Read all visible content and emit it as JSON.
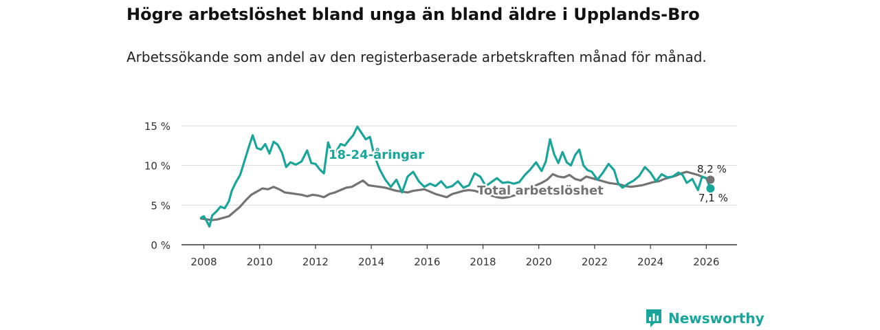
{
  "title": "Högre arbetslöshet bland unga än bland äldre i Upplands-Bro",
  "subtitle": "Arbetssökande som andel av den registerbaserade arbetskraften månad för månad.",
  "brand": {
    "name": "Newsworthy",
    "icon": "bar-chart-icon"
  },
  "colors": {
    "youth": "#1aa59a",
    "total": "#737373",
    "grid": "#d9d9d9",
    "axis": "#333333"
  },
  "chart_data": {
    "type": "line",
    "title": "Högre arbetslöshet bland unga än bland äldre i Upplands-Bro",
    "subtitle": "Arbetssökande som andel av den registerbaserade arbetskraften månad för månad.",
    "xlabel": "",
    "ylabel": "",
    "xlim": [
      2007.2,
      2027.1
    ],
    "ylim": [
      0,
      15
    ],
    "y_ticks": [
      0,
      5,
      10,
      15
    ],
    "y_tick_labels": [
      "0 %",
      "5 %",
      "10 %",
      "15 %"
    ],
    "x_ticks": [
      2008,
      2010,
      2012,
      2014,
      2016,
      2018,
      2020,
      2022,
      2024,
      2026
    ],
    "x_tick_labels": [
      "2008",
      "2010",
      "2012",
      "2014",
      "2016",
      "2018",
      "2020",
      "2022",
      "2024",
      "2026"
    ],
    "grid": true,
    "series": [
      {
        "name": "18-24-åringar",
        "color": "#1aa59a",
        "end_label": "7,1 %",
        "x": [
          2007.9,
          2008.0,
          2008.1,
          2008.2,
          2008.3,
          2008.45,
          2008.6,
          2008.75,
          2008.9,
          2009.0,
          2009.15,
          2009.3,
          2009.45,
          2009.6,
          2009.75,
          2009.9,
          2010.05,
          2010.2,
          2010.35,
          2010.5,
          2010.65,
          2010.8,
          2010.95,
          2011.1,
          2011.3,
          2011.5,
          2011.7,
          2011.85,
          2012.0,
          2012.15,
          2012.3,
          2012.45,
          2012.6,
          2012.75,
          2012.9,
          2013.05,
          2013.2,
          2013.35,
          2013.5,
          2013.65,
          2013.8,
          2013.95,
          2014.1,
          2014.3,
          2014.5,
          2014.7,
          2014.9,
          2015.1,
          2015.3,
          2015.5,
          2015.7,
          2015.9,
          2016.1,
          2016.3,
          2016.5,
          2016.7,
          2016.9,
          2017.1,
          2017.3,
          2017.5,
          2017.7,
          2017.9,
          2018.1,
          2018.3,
          2018.5,
          2018.7,
          2018.9,
          2019.1,
          2019.3,
          2019.5,
          2019.7,
          2019.9,
          2020.1,
          2020.25,
          2020.4,
          2020.55,
          2020.7,
          2020.85,
          2021.0,
          2021.15,
          2021.3,
          2021.45,
          2021.6,
          2021.75,
          2021.9,
          2022.1,
          2022.3,
          2022.5,
          2022.7,
          2022.85,
          2023.0,
          2023.2,
          2023.4,
          2023.6,
          2023.8,
          2024.0,
          2024.2,
          2024.4,
          2024.6,
          2024.8,
          2025.0,
          2025.15,
          2025.3,
          2025.5,
          2025.7,
          2025.85,
          2026.0,
          2026.15
        ],
        "y": [
          3.4,
          3.6,
          3.0,
          2.3,
          3.7,
          4.2,
          4.8,
          4.6,
          5.5,
          6.8,
          7.9,
          8.8,
          10.5,
          12.2,
          13.8,
          12.2,
          12.0,
          12.7,
          11.5,
          13.0,
          12.6,
          11.6,
          9.8,
          10.4,
          10.1,
          10.5,
          11.9,
          10.3,
          10.2,
          9.5,
          9.0,
          12.9,
          11.4,
          11.8,
          12.7,
          12.5,
          13.2,
          13.8,
          14.9,
          14.1,
          13.3,
          13.6,
          11.3,
          9.5,
          8.2,
          7.3,
          8.2,
          6.6,
          8.6,
          9.2,
          8.0,
          7.3,
          7.7,
          7.4,
          8.0,
          7.2,
          7.4,
          8.0,
          7.2,
          7.5,
          9.0,
          8.6,
          7.4,
          7.9,
          8.4,
          7.8,
          7.9,
          7.7,
          7.9,
          8.8,
          9.5,
          10.4,
          9.3,
          10.5,
          13.3,
          11.4,
          10.3,
          11.7,
          10.4,
          10.0,
          11.3,
          12.0,
          10.0,
          9.4,
          9.2,
          8.2,
          9.1,
          10.2,
          9.4,
          7.7,
          7.2,
          7.7,
          8.1,
          8.7,
          9.8,
          9.1,
          8.0,
          8.9,
          8.5,
          8.6,
          9.1,
          8.8,
          7.8,
          8.3,
          6.9,
          8.6,
          8.4,
          7.1
        ]
      },
      {
        "name": "Total arbetslöshet",
        "color": "#737373",
        "end_label": "8,2 %",
        "x": [
          2007.9,
          2008.1,
          2008.3,
          2008.5,
          2008.7,
          2008.9,
          2009.1,
          2009.3,
          2009.5,
          2009.7,
          2009.9,
          2010.1,
          2010.3,
          2010.5,
          2010.7,
          2010.9,
          2011.1,
          2011.3,
          2011.5,
          2011.7,
          2011.9,
          2012.1,
          2012.3,
          2012.5,
          2012.7,
          2012.9,
          2013.1,
          2013.3,
          2013.5,
          2013.7,
          2013.9,
          2014.1,
          2014.3,
          2014.5,
          2014.7,
          2014.9,
          2015.1,
          2015.3,
          2015.5,
          2015.7,
          2015.9,
          2016.1,
          2016.3,
          2016.5,
          2016.7,
          2016.9,
          2017.1,
          2017.3,
          2017.5,
          2017.7,
          2017.9,
          2018.1,
          2018.3,
          2018.5,
          2018.7,
          2018.9,
          2019.1,
          2019.3,
          2019.5,
          2019.7,
          2019.9,
          2020.1,
          2020.3,
          2020.5,
          2020.7,
          2020.9,
          2021.1,
          2021.3,
          2021.5,
          2021.7,
          2021.9,
          2022.1,
          2022.3,
          2022.5,
          2022.7,
          2022.9,
          2023.1,
          2023.3,
          2023.5,
          2023.7,
          2023.9,
          2024.1,
          2024.3,
          2024.5,
          2024.7,
          2024.9,
          2025.1,
          2025.3,
          2025.5,
          2025.7,
          2025.9,
          2026.15
        ],
        "y": [
          3.3,
          3.2,
          3.1,
          3.2,
          3.4,
          3.6,
          4.2,
          4.8,
          5.6,
          6.3,
          6.7,
          7.1,
          7.0,
          7.3,
          7.0,
          6.6,
          6.5,
          6.4,
          6.3,
          6.1,
          6.3,
          6.2,
          6.0,
          6.4,
          6.6,
          6.9,
          7.2,
          7.3,
          7.7,
          8.1,
          7.5,
          7.4,
          7.3,
          7.2,
          7.0,
          6.8,
          6.7,
          6.6,
          6.8,
          6.9,
          7.0,
          6.7,
          6.4,
          6.2,
          6.0,
          6.4,
          6.6,
          6.8,
          6.9,
          6.8,
          6.6,
          6.4,
          6.2,
          6.0,
          5.9,
          6.0,
          6.2,
          6.4,
          6.7,
          7.1,
          7.5,
          7.8,
          8.2,
          8.9,
          8.6,
          8.5,
          8.8,
          8.3,
          8.1,
          8.6,
          8.4,
          8.2,
          8.0,
          7.8,
          7.7,
          7.6,
          7.4,
          7.3,
          7.4,
          7.5,
          7.7,
          7.9,
          8.0,
          8.3,
          8.5,
          8.7,
          9.0,
          9.2,
          9.0,
          8.8,
          8.5,
          8.2
        ]
      }
    ],
    "annotations": [
      {
        "text": "18-24-åringar",
        "series": "18-24-åringar"
      },
      {
        "text": "Total arbetslöshet",
        "series": "Total arbetslöshet"
      }
    ]
  }
}
